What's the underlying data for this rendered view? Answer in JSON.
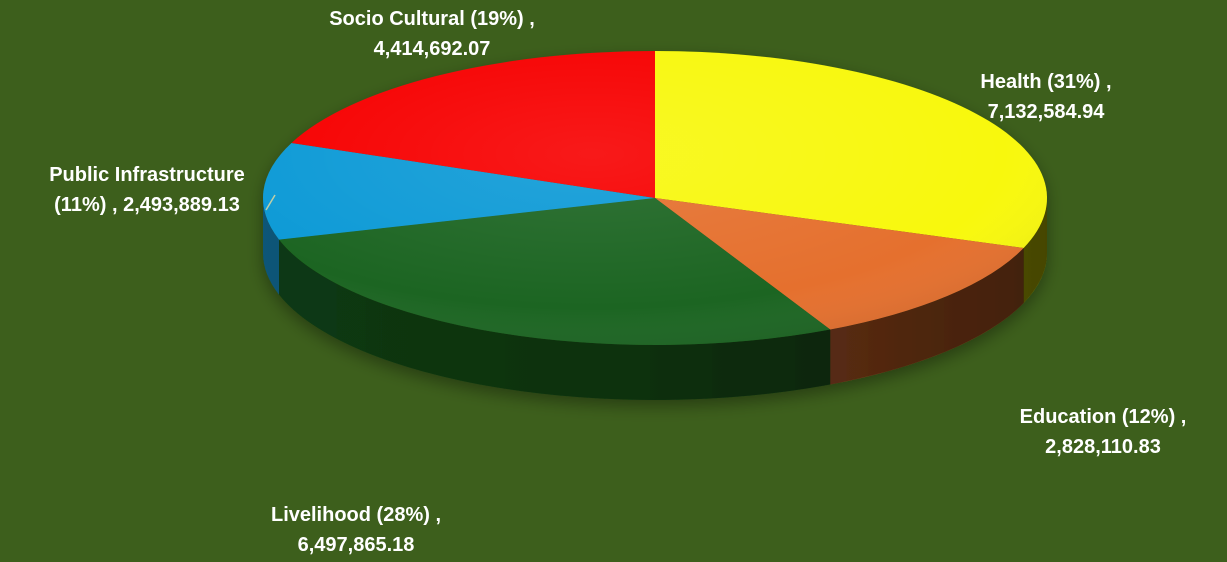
{
  "chart_data": {
    "type": "pie",
    "style": "3d",
    "background_color": "#3d5f1c",
    "slices": [
      {
        "name": "Health",
        "value": 7132584.94,
        "value_label": "7,132,584.94",
        "percent_label": "(31%)",
        "color": "#f8f808"
      },
      {
        "name": "Education",
        "value": 2828110.83,
        "value_label": "2,828,110.83",
        "percent_label": "(12%)",
        "color": "#e5702e"
      },
      {
        "name": "Livelihood",
        "value": 6497865.18,
        "value_label": "6,497,865.18",
        "percent_label": "(28%)",
        "color": "#1a6520"
      },
      {
        "name": "Public Infrastructure",
        "value": 2493889.13,
        "value_label": "2,493,889.13",
        "percent_label": "(11%)",
        "color": "#0f9ad6"
      },
      {
        "name": "Socio Cultural",
        "value": 4414692.07,
        "value_label": "4,414,692.07",
        "percent_label": "(19%)",
        "color": "#f70303"
      }
    ],
    "labels": [
      {
        "line1": "Socio Cultural (19%) ,",
        "line2": "4,414,692.07"
      },
      {
        "line1": "Health (31%) ,",
        "line2": "7,132,584.94"
      },
      {
        "line1": "Public Infrastructure",
        "line2": "(11%) ,  2,493,889.13"
      },
      {
        "line1": "Education (12%) ,",
        "line2": "2,828,110.83"
      },
      {
        "line1": "Livelihood (28%) ,",
        "line2": "6,497,865.18"
      }
    ]
  }
}
